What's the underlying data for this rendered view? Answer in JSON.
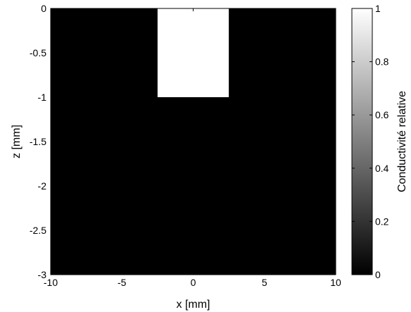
{
  "chart_data": {
    "type": "heatmap",
    "title": "",
    "xlabel": "x [mm]",
    "ylabel": "z [mm]",
    "xlim": [
      -10,
      10
    ],
    "ylim": [
      -3,
      0
    ],
    "x_ticks": [
      -10,
      -5,
      0,
      5,
      10
    ],
    "x_tick_labels": [
      "-10",
      "-5",
      "0",
      "5",
      "10"
    ],
    "y_ticks": [
      0,
      -0.5,
      -1,
      -1.5,
      -2,
      -2.5,
      -3
    ],
    "y_tick_labels": [
      "0",
      "-0.5",
      "-1",
      "-1.5",
      "-2",
      "-2.5",
      "-3"
    ],
    "colormap": "gray",
    "background_value": 0,
    "regions": [
      {
        "x_range": [
          -10,
          10
        ],
        "z_range": [
          -3,
          0
        ],
        "value": 0
      },
      {
        "x_range": [
          -2.5,
          2.5
        ],
        "z_range": [
          -1,
          0
        ],
        "value": 1
      }
    ],
    "colorbar": {
      "label": "Conductivité relative",
      "range": [
        0,
        1
      ],
      "ticks": [
        0,
        0.2,
        0.4,
        0.6,
        0.8,
        1
      ],
      "tick_labels": [
        "0",
        "0.2",
        "0.4",
        "0.6",
        "0.8",
        "1"
      ]
    },
    "grid": false,
    "legend": "none"
  }
}
